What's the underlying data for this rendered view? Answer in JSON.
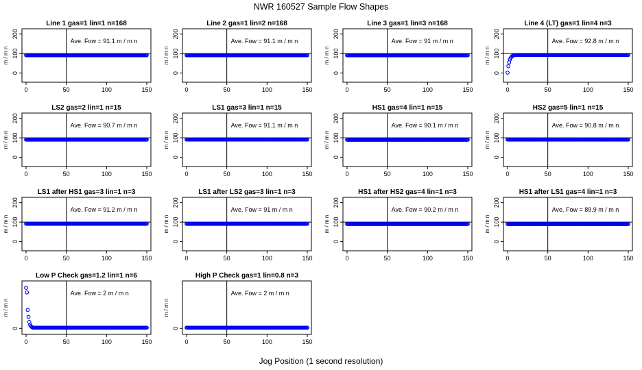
{
  "figure": {
    "title": "NWR  160527  Sample Flow Shapes",
    "xlabel": "Jog Position (1 second resolution)"
  },
  "style": {
    "point_color": "#0000ee",
    "axis_color": "#000000"
  },
  "chart_data": [
    {
      "type": "scatter",
      "title": "Line 1 gas=1 lin=1 n=168",
      "ylabel": "m / m n",
      "annotation": "Ave. Fow =  91.1  m / m n",
      "xlim": [
        0,
        150
      ],
      "ylim": [
        -40,
        220
      ],
      "xticks": [
        0,
        50,
        100,
        150
      ],
      "yticks": [
        0,
        100,
        200
      ],
      "vline": 50,
      "hline": 100,
      "y_start": [],
      "y_plateau": 91.1
    },
    {
      "type": "scatter",
      "title": "Line 2 gas=1 lin=2 n=168",
      "ylabel": "m / m n",
      "annotation": "Ave. Fow =  91.1  m / m n",
      "xlim": [
        0,
        150
      ],
      "ylim": [
        -40,
        220
      ],
      "xticks": [
        0,
        50,
        100,
        150
      ],
      "yticks": [
        0,
        100,
        200
      ],
      "vline": 50,
      "hline": 100,
      "y_start": [],
      "y_plateau": 91.1
    },
    {
      "type": "scatter",
      "title": "Line 3 gas=1 lin=3 n=168",
      "ylabel": "m / m n",
      "annotation": "Ave. Fow =  91  m / m n",
      "xlim": [
        0,
        150
      ],
      "ylim": [
        -40,
        220
      ],
      "xticks": [
        0,
        50,
        100,
        150
      ],
      "yticks": [
        0,
        100,
        200
      ],
      "vline": 50,
      "hline": 100,
      "y_start": [],
      "y_plateau": 91
    },
    {
      "type": "scatter",
      "title": "Line 4 (LT) gas=1 lin=4 n=3",
      "ylabel": "m / m n",
      "annotation": "Ave. Fow =  92.8  m / m n",
      "xlim": [
        0,
        150
      ],
      "ylim": [
        -40,
        220
      ],
      "xticks": [
        0,
        50,
        100,
        150
      ],
      "yticks": [
        0,
        100,
        200
      ],
      "vline": 50,
      "hline": 100,
      "y_start": [
        2,
        35,
        55,
        70,
        78,
        84,
        88,
        90,
        91,
        92
      ],
      "y_plateau": 92.8
    },
    {
      "type": "scatter",
      "title": "LS2 gas=2 lin=1 n=15",
      "ylabel": "m / m n",
      "annotation": "Ave. Fow =  90.7  m / m n",
      "xlim": [
        0,
        150
      ],
      "ylim": [
        -40,
        220
      ],
      "xticks": [
        0,
        50,
        100,
        150
      ],
      "yticks": [
        0,
        100,
        200
      ],
      "vline": 50,
      "hline": 100,
      "y_start": [],
      "y_plateau": 90.7
    },
    {
      "type": "scatter",
      "title": "LS1 gas=3 lin=1 n=15",
      "ylabel": "m / m n",
      "annotation": "Ave. Fow =  91.1  m / m n",
      "xlim": [
        0,
        150
      ],
      "ylim": [
        -40,
        220
      ],
      "xticks": [
        0,
        50,
        100,
        150
      ],
      "yticks": [
        0,
        100,
        200
      ],
      "vline": 50,
      "hline": 100,
      "y_start": [],
      "y_plateau": 91.1
    },
    {
      "type": "scatter",
      "title": "HS1 gas=4 lin=1 n=15",
      "ylabel": "m / m n",
      "annotation": "Ave. Fow =  90.1  m / m n",
      "xlim": [
        0,
        150
      ],
      "ylim": [
        -40,
        220
      ],
      "xticks": [
        0,
        50,
        100,
        150
      ],
      "yticks": [
        0,
        100,
        200
      ],
      "vline": 50,
      "hline": 100,
      "y_start": [],
      "y_plateau": 90.1
    },
    {
      "type": "scatter",
      "title": "HS2 gas=5 lin=1 n=15",
      "ylabel": "m / m n",
      "annotation": "Ave. Fow =  90.8  m / m n",
      "xlim": [
        0,
        150
      ],
      "ylim": [
        -40,
        220
      ],
      "xticks": [
        0,
        50,
        100,
        150
      ],
      "yticks": [
        0,
        100,
        200
      ],
      "vline": 50,
      "hline": 100,
      "y_start": [],
      "y_plateau": 90.8
    },
    {
      "type": "scatter",
      "title": "LS1 after HS1 gas=3 lin=1 n=3",
      "ylabel": "m / m n",
      "annotation": "Ave. Fow =  91.2  m / m n",
      "xlim": [
        0,
        150
      ],
      "ylim": [
        -40,
        220
      ],
      "xticks": [
        0,
        50,
        100,
        150
      ],
      "yticks": [
        0,
        100,
        200
      ],
      "vline": 50,
      "hline": 100,
      "y_start": [],
      "y_plateau": 91.2
    },
    {
      "type": "scatter",
      "title": "LS1 after LS2 gas=3 lin=1 n=3",
      "ylabel": "m / m n",
      "annotation": "Ave. Fow =  91  m / m n",
      "xlim": [
        0,
        150
      ],
      "ylim": [
        -40,
        220
      ],
      "xticks": [
        0,
        50,
        100,
        150
      ],
      "yticks": [
        0,
        100,
        200
      ],
      "vline": 50,
      "hline": 100,
      "y_start": [],
      "y_plateau": 91
    },
    {
      "type": "scatter",
      "title": "HS1 after HS2 gas=4 lin=1 n=3",
      "ylabel": "m / m n",
      "annotation": "Ave. Fow =  90.2  m / m n",
      "xlim": [
        0,
        150
      ],
      "ylim": [
        -40,
        220
      ],
      "xticks": [
        0,
        50,
        100,
        150
      ],
      "yticks": [
        0,
        100,
        200
      ],
      "vline": 50,
      "hline": 100,
      "y_start": [],
      "y_plateau": 90.2
    },
    {
      "type": "scatter",
      "title": "HS1 after LS1 gas=4 lin=1 n=3",
      "ylabel": "m / m n",
      "annotation": "Ave. Fow =  89.9  m / m n",
      "xlim": [
        0,
        150
      ],
      "ylim": [
        -40,
        220
      ],
      "xticks": [
        0,
        50,
        100,
        150
      ],
      "yticks": [
        0,
        100,
        200
      ],
      "vline": 50,
      "hline": 100,
      "y_start": [],
      "y_plateau": 89.9
    },
    {
      "type": "scatter",
      "title": "Low P Check gas=1.2 lin=1 n=6",
      "ylabel": "m / m n",
      "annotation": "Ave. Fow =  2  m / m n",
      "xlim": [
        0,
        150
      ],
      "ylim": [
        -10,
        100
      ],
      "xticks": [
        0,
        50,
        100,
        150
      ],
      "yticks": [
        0
      ],
      "vline": 50,
      "hline": null,
      "y_start": [
        88,
        78,
        40,
        25,
        14,
        8,
        5,
        3,
        2
      ],
      "y_plateau": 1.5
    },
    {
      "type": "scatter",
      "title": "High P Check gas=1 lin=0.8 n=3",
      "ylabel": "m / m n",
      "annotation": "Ave. Fow =  2  m / m n",
      "xlim": [
        0,
        150
      ],
      "ylim": [
        -10,
        100
      ],
      "xticks": [
        0,
        50,
        100,
        150
      ],
      "yticks": [
        0
      ],
      "vline": 50,
      "hline": null,
      "y_start": [],
      "y_plateau": 1.5
    }
  ]
}
